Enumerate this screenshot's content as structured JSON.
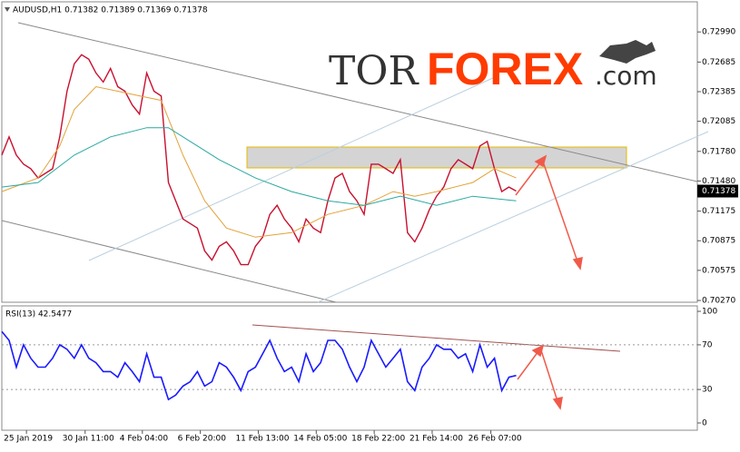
{
  "logo": {
    "main": "TOR",
    "accent": "FOREX",
    "suffix": ".com"
  },
  "chart_data": [
    {
      "type": "line",
      "title": "AUDUSD,H1  0.71382 0.71389 0.71369 0.71378",
      "current_price": 0.71378,
      "xlim": [
        0,
        96
      ],
      "ylim": [
        0.70252,
        0.73295
      ],
      "yticks": [
        {
          "value": 0.7299,
          "label": "0.72990"
        },
        {
          "value": 0.72685,
          "label": "0.72685"
        },
        {
          "value": 0.72385,
          "label": "0.72385"
        },
        {
          "value": 0.72085,
          "label": "0.72085"
        },
        {
          "value": 0.7178,
          "label": "0.71780"
        },
        {
          "value": 0.7148,
          "label": "0.71480"
        },
        {
          "value": 0.71175,
          "label": "0.71175"
        },
        {
          "value": 0.70875,
          "label": "0.70875"
        },
        {
          "value": 0.70575,
          "label": "0.70575"
        },
        {
          "value": 0.7027,
          "label": "0.70270"
        }
      ],
      "series": [
        {
          "name": "Close",
          "color": "#c8102e",
          "x": [
            0,
            1,
            2,
            3,
            4,
            5,
            6,
            7,
            8,
            9,
            10,
            11,
            12,
            13,
            14,
            15,
            16,
            17,
            18,
            19,
            20,
            21,
            22,
            23,
            24,
            25,
            26,
            27,
            28,
            29,
            30,
            31,
            32,
            33,
            34,
            35,
            36,
            37,
            38,
            39,
            40,
            41,
            42,
            43,
            44,
            45,
            46,
            47,
            48,
            49,
            50,
            51,
            52,
            53,
            54,
            55,
            56,
            57,
            58,
            59,
            60,
            61,
            62,
            63,
            64,
            65,
            66,
            67,
            68,
            69,
            70,
            71
          ],
          "values": [
            0.71742,
            0.71927,
            0.71742,
            0.7165,
            0.71604,
            0.71511,
            0.71557,
            0.71604,
            0.71927,
            0.72389,
            0.72667,
            0.72759,
            0.72713,
            0.72574,
            0.72482,
            0.7262,
            0.72435,
            0.72389,
            0.72251,
            0.72158,
            0.72574,
            0.72389,
            0.72343,
            0.71465,
            0.7128,
            0.71095,
            0.71049,
            0.71003,
            0.70772,
            0.70679,
            0.70818,
            0.70864,
            0.70772,
            0.70633,
            0.70633,
            0.70818,
            0.70911,
            0.71142,
            0.71234,
            0.71095,
            0.71003,
            0.70864,
            0.71095,
            0.71003,
            0.70957,
            0.7128,
            0.71511,
            0.71557,
            0.71373,
            0.7128,
            0.71142,
            0.7165,
            0.7165,
            0.71604,
            0.71557,
            0.71696,
            0.70957,
            0.70864,
            0.71003,
            0.71188,
            0.71326,
            0.71419,
            0.71604,
            0.71696,
            0.7165,
            0.71604,
            0.71835,
            0.71881,
            0.71604,
            0.71373,
            0.71419,
            0.71378
          ]
        },
        {
          "name": "MA fast",
          "color": "#e3a23a",
          "x": [
            0,
            5,
            8,
            10,
            13,
            16,
            19,
            22,
            25,
            28,
            31,
            35,
            40,
            45,
            50,
            54,
            57,
            60,
            65,
            68,
            71
          ],
          "values": [
            0.71373,
            0.71511,
            0.71835,
            0.72204,
            0.72435,
            0.72389,
            0.72343,
            0.72297,
            0.71742,
            0.7128,
            0.71003,
            0.70911,
            0.70957,
            0.71142,
            0.71234,
            0.71373,
            0.71326,
            0.71373,
            0.71465,
            0.71604,
            0.71511
          ]
        },
        {
          "name": "MA slow",
          "color": "#2aa9a0",
          "x": [
            0,
            5,
            10,
            15,
            20,
            23,
            25,
            30,
            35,
            40,
            45,
            50,
            55,
            60,
            65,
            71
          ],
          "values": [
            0.71419,
            0.71465,
            0.71742,
            0.71927,
            0.7202,
            0.7202,
            0.71927,
            0.71696,
            0.71511,
            0.71373,
            0.7128,
            0.71234,
            0.71326,
            0.71234,
            0.71326,
            0.7128
          ]
        }
      ]
    },
    {
      "type": "line",
      "title": "RSI(13) 42.5477",
      "xlim": [
        0,
        96
      ],
      "ylim": [
        -6.5,
        104.9
      ],
      "yticks": [
        100,
        70,
        30,
        0
      ],
      "levels": [
        70,
        30
      ],
      "xticks": [
        {
          "value": 3.4,
          "label": "25 Jan 2019"
        },
        {
          "value": 11.5,
          "label": "30 Jan 11:00"
        },
        {
          "value": 19.4,
          "label": "4 Feb 04:00"
        },
        {
          "value": 27.4,
          "label": "6 Feb 20:00"
        },
        {
          "value": 35.4,
          "label": "11 Feb 13:00"
        },
        {
          "value": 43.4,
          "label": "14 Feb 05:00"
        },
        {
          "value": 51.4,
          "label": "18 Feb 22:00"
        },
        {
          "value": 59.4,
          "label": "21 Feb 14:00"
        },
        {
          "value": 67.5,
          "label": "26 Feb 07:00"
        }
      ],
      "series": [
        {
          "name": "RSI(13)",
          "color": "#1a1aff",
          "x": [
            0,
            1,
            2,
            3,
            4,
            5,
            6,
            7,
            8,
            9,
            10,
            11,
            12,
            13,
            14,
            15,
            16,
            17,
            18,
            19,
            20,
            21,
            22,
            23,
            24,
            25,
            26,
            27,
            28,
            29,
            30,
            31,
            32,
            33,
            34,
            35,
            36,
            37,
            38,
            39,
            40,
            41,
            42,
            43,
            44,
            45,
            46,
            47,
            48,
            49,
            50,
            51,
            52,
            53,
            54,
            55,
            56,
            57,
            58,
            59,
            60,
            61,
            62,
            63,
            64,
            65,
            66,
            67,
            68,
            69,
            70,
            71
          ],
          "values": [
            82,
            74,
            50,
            70,
            58,
            50,
            50,
            58,
            70,
            66,
            58,
            70,
            58,
            54,
            46,
            46,
            41,
            54,
            46,
            37,
            62,
            41,
            41,
            21,
            25,
            33,
            37,
            46,
            33,
            37,
            54,
            50,
            41,
            29,
            46,
            50,
            62,
            74,
            58,
            46,
            50,
            37,
            62,
            46,
            54,
            74,
            74,
            66,
            50,
            37,
            50,
            74,
            62,
            50,
            58,
            66,
            37,
            29,
            50,
            58,
            70,
            66,
            66,
            58,
            62,
            46,
            70,
            50,
            58,
            29,
            41,
            42.5477
          ]
        }
      ]
    }
  ]
}
